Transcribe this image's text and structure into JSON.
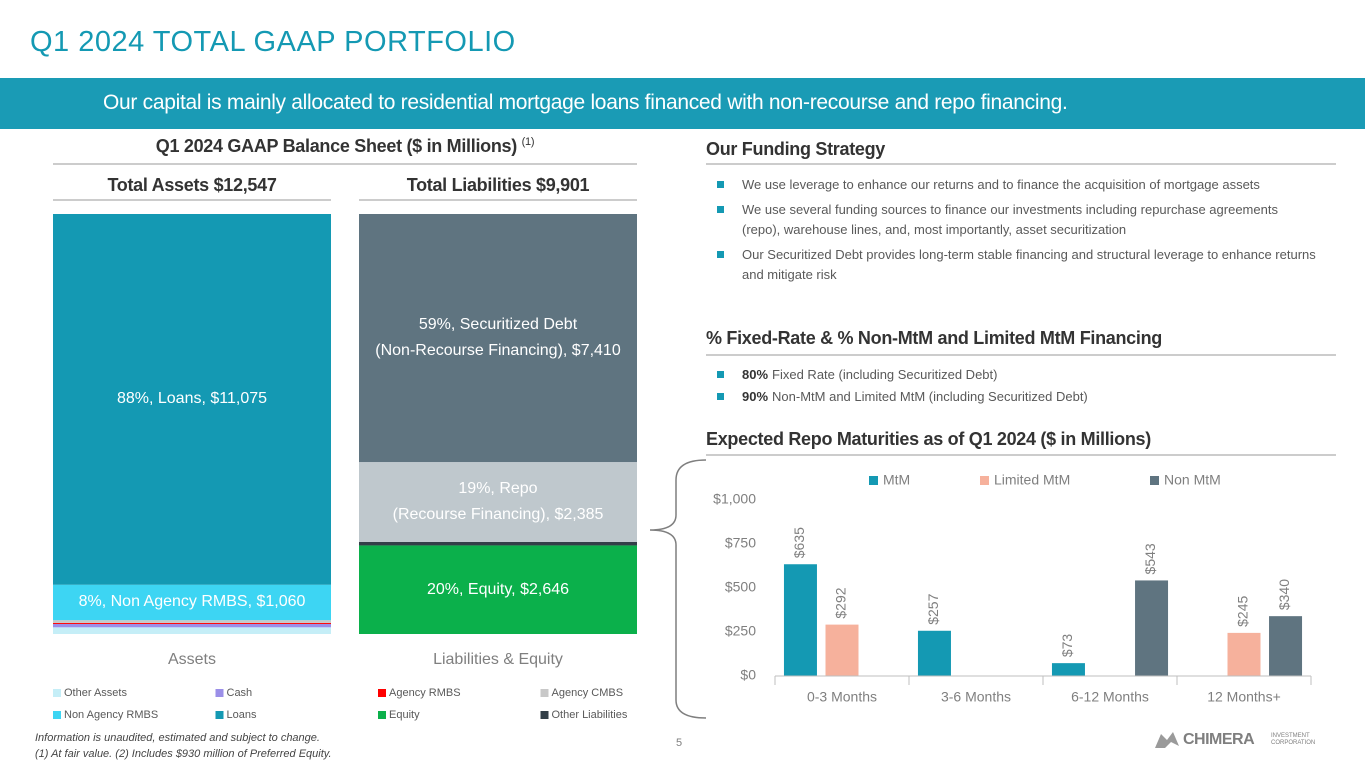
{
  "header": {
    "title": "Q1 2024 TOTAL GAAP PORTFOLIO",
    "banner": "Our capital is mainly allocated to residential mortgage loans financed with non-recourse and repo financing."
  },
  "funding": {
    "heading": "Our Funding Strategy",
    "bullets": [
      "We use leverage to enhance our returns and to finance the acquisition of mortgage assets",
      "We use several funding sources to finance our investments including repurchase agreements (repo), warehouse lines, and, most importantly, asset securitization",
      "Our Securitized Debt provides long-term stable financing and structural leverage to enhance returns and mitigate risk"
    ]
  },
  "financing": {
    "heading": "% Fixed-Rate & % Non-MtM and Limited MtM Financing",
    "bullets": [
      {
        "bold": "80%",
        "text": "Fixed Rate (including Securitized Debt)"
      },
      {
        "bold": "90%",
        "text": "Non-MtM and Limited MtM (including Securitized Debt)"
      }
    ]
  },
  "chart_data": [
    {
      "type": "stacked_bar",
      "title": "Q1 2024 GAAP Balance Sheet ($ in Millions)",
      "title_note": "(1)",
      "totals": [
        "Total Assets $12,547",
        "Total Liabilities $9,901"
      ],
      "categories": [
        "Assets",
        "Liabilities & Equity"
      ],
      "series": [
        {
          "name": "Other Assets",
          "color": "#c5eef7",
          "values": [
            200,
            null
          ]
        },
        {
          "name": "Cash",
          "color": "#9b8fe8",
          "values": [
            100,
            null
          ]
        },
        {
          "name": "Agency RMBS",
          "color": "#ff0000",
          "values": [
            30,
            null
          ]
        },
        {
          "name": "Agency CMBS",
          "color": "#c8c8c8",
          "values": [
            82,
            null
          ]
        },
        {
          "name": "Non Agency RMBS",
          "color": "#3dd5f3",
          "values": [
            1060,
            null
          ],
          "value_labels": [
            "8%, Non Agency RMBS, $1,060",
            null
          ]
        },
        {
          "name": "Loans",
          "color": "#1499b3",
          "values": [
            11075,
            null
          ],
          "value_labels": [
            "88%, Loans, $11,075",
            null
          ]
        },
        {
          "name": "Equity",
          "color": "#0bb04b",
          "values": [
            null,
            2646
          ],
          "value_labels": [
            null,
            "20%, Equity, $2,646"
          ]
        },
        {
          "name": "Other Liabilities",
          "color": "#333f48",
          "values": [
            null,
            106
          ]
        },
        {
          "color": "#bfc8cd",
          "values": [
            null,
            2385
          ],
          "value_labels": [
            null,
            "19%, Repo\n(Recourse Financing), $2,385"
          ]
        },
        {
          "color": "#5f7480",
          "values": [
            null,
            7410
          ],
          "value_labels": [
            null,
            "59%, Securitized Debt\n(Non-Recourse Financing), $7,410"
          ]
        }
      ]
    },
    {
      "type": "bar",
      "title": "Expected Repo Maturities as of Q1 2024 ($ in Millions)",
      "categories": [
        "0-3 Months",
        "3-6 Months",
        "6-12 Months",
        "12 Months+"
      ],
      "series": [
        {
          "name": "MtM",
          "color": "#1499b3",
          "values": [
            635,
            257,
            73,
            null
          ],
          "value_labels": [
            "$635",
            "$257",
            "$73",
            null
          ]
        },
        {
          "name": "Limited MtM",
          "color": "#f6b19c",
          "values": [
            292,
            null,
            null,
            245
          ],
          "value_labels": [
            "$292",
            null,
            null,
            "$245"
          ]
        },
        {
          "name": "Non MtM",
          "color": "#5f7480",
          "values": [
            null,
            null,
            543,
            340
          ],
          "value_labels": [
            null,
            null,
            "$543",
            "$340"
          ]
        }
      ],
      "ylim": [
        0,
        1000
      ],
      "yticks": [
        {
          "value": 0,
          "label": "$0"
        },
        {
          "value": 250,
          "label": "$250"
        },
        {
          "value": 500,
          "label": "$500"
        },
        {
          "value": 750,
          "label": "$750"
        },
        {
          "value": 1000,
          "label": "$1,000"
        }
      ],
      "grid": false
    }
  ],
  "footer": {
    "notes": [
      "Information is unaudited, estimated and subject to change.",
      "(1) At fair value. (2) Includes $930 million of Preferred Equity."
    ],
    "page": "5",
    "logo": "CHIMERA",
    "logo_sub": "INVESTMENT CORPORATION"
  }
}
